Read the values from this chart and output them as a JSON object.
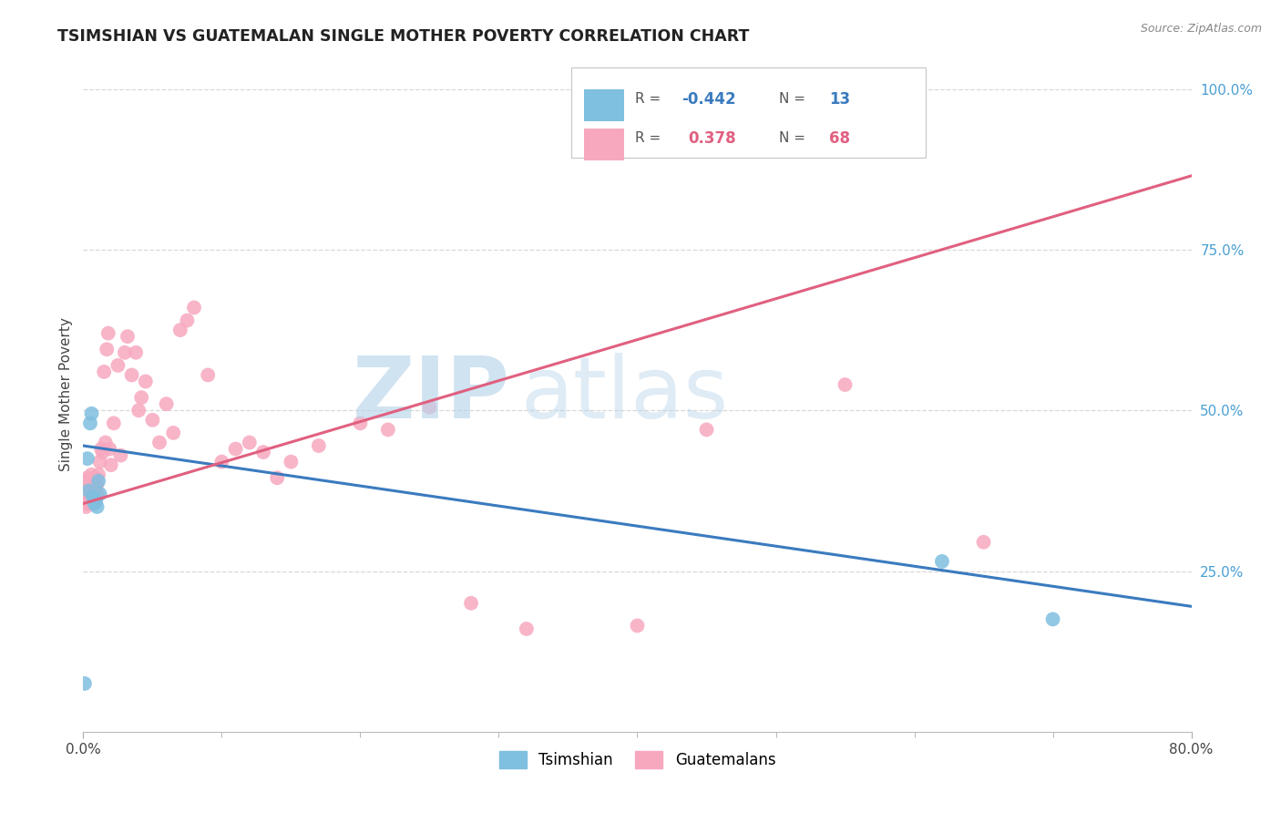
{
  "title": "TSIMSHIAN VS GUATEMALAN SINGLE MOTHER POVERTY CORRELATION CHART",
  "source": "Source: ZipAtlas.com",
  "ylabel": "Single Mother Poverty",
  "x_min": 0.0,
  "x_max": 0.8,
  "y_min": 0.0,
  "y_max": 1.05,
  "y_ticks_right": [
    0.25,
    0.5,
    0.75,
    1.0
  ],
  "y_tick_labels_right": [
    "25.0%",
    "50.0%",
    "75.0%",
    "100.0%"
  ],
  "legend_bottom_blue": "Tsimshian",
  "legend_bottom_pink": "Guatemalans",
  "blue_color": "#7fbfdf",
  "pink_color": "#f7a8bf",
  "blue_line_color": "#3a7bbf",
  "pink_line_color": "#e06080",
  "watermark_zip": "ZIP",
  "watermark_atlas": "atlas",
  "background_color": "#ffffff",
  "grid_color": "#d8d8d8",
  "tsimshian_x": [
    0.001,
    0.003,
    0.004,
    0.005,
    0.006,
    0.007,
    0.008,
    0.009,
    0.01,
    0.011,
    0.012,
    0.62,
    0.7
  ],
  "tsimshian_y": [
    0.075,
    0.425,
    0.375,
    0.48,
    0.495,
    0.365,
    0.355,
    0.36,
    0.35,
    0.39,
    0.37,
    0.265,
    0.175
  ],
  "guatemalan_x": [
    0.001,
    0.001,
    0.001,
    0.002,
    0.002,
    0.003,
    0.003,
    0.003,
    0.004,
    0.004,
    0.005,
    0.005,
    0.005,
    0.006,
    0.006,
    0.007,
    0.007,
    0.007,
    0.008,
    0.008,
    0.009,
    0.009,
    0.01,
    0.01,
    0.011,
    0.012,
    0.013,
    0.014,
    0.015,
    0.016,
    0.017,
    0.018,
    0.019,
    0.02,
    0.022,
    0.025,
    0.027,
    0.03,
    0.032,
    0.035,
    0.038,
    0.04,
    0.042,
    0.045,
    0.05,
    0.055,
    0.06,
    0.065,
    0.07,
    0.075,
    0.08,
    0.09,
    0.1,
    0.11,
    0.12,
    0.13,
    0.14,
    0.15,
    0.17,
    0.2,
    0.22,
    0.25,
    0.28,
    0.32,
    0.4,
    0.45,
    0.55,
    0.65
  ],
  "guatemalan_y": [
    0.36,
    0.375,
    0.39,
    0.35,
    0.365,
    0.355,
    0.37,
    0.395,
    0.36,
    0.38,
    0.355,
    0.375,
    0.39,
    0.365,
    0.4,
    0.37,
    0.39,
    0.36,
    0.375,
    0.39,
    0.36,
    0.395,
    0.37,
    0.385,
    0.4,
    0.42,
    0.44,
    0.435,
    0.56,
    0.45,
    0.595,
    0.62,
    0.44,
    0.415,
    0.48,
    0.57,
    0.43,
    0.59,
    0.615,
    0.555,
    0.59,
    0.5,
    0.52,
    0.545,
    0.485,
    0.45,
    0.51,
    0.465,
    0.625,
    0.64,
    0.66,
    0.555,
    0.42,
    0.44,
    0.45,
    0.435,
    0.395,
    0.42,
    0.445,
    0.48,
    0.47,
    0.505,
    0.2,
    0.16,
    0.165,
    0.47,
    0.54,
    0.295
  ],
  "blue_line_x0": 0.0,
  "blue_line_y0": 0.445,
  "blue_line_x1": 0.8,
  "blue_line_y1": 0.195,
  "pink_line_x0": 0.0,
  "pink_line_y0": 0.355,
  "pink_line_x1": 0.8,
  "pink_line_y1": 0.865
}
